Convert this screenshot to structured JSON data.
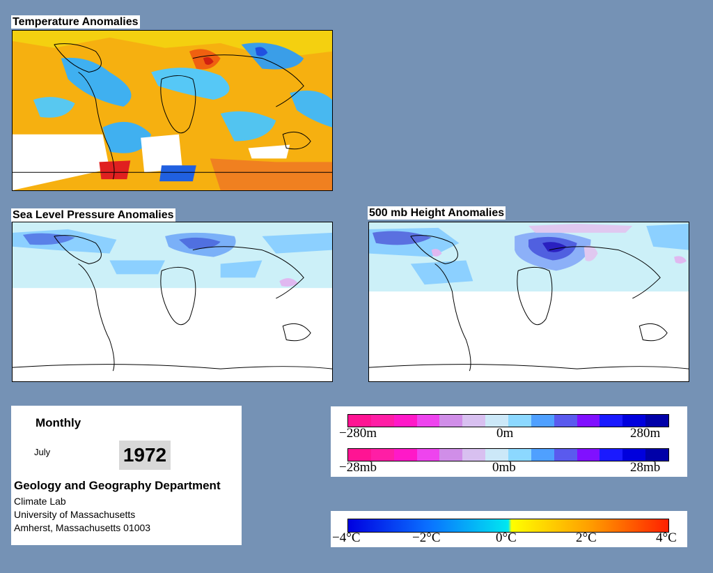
{
  "maps": {
    "temperature": {
      "title": "Temperature Anomalies"
    },
    "slp": {
      "title": "Sea Level Pressure Anomalies"
    },
    "height500": {
      "title": "500 mb Height Anomalies"
    }
  },
  "info": {
    "period": "Monthly",
    "month": "July",
    "year": "1972",
    "department": "Geology and Geography Department",
    "lab": "Climate Lab",
    "university": "University of Massachusetts",
    "address": "Amherst, Massachusetts 01003"
  },
  "legend_height": {
    "min": "−280m",
    "mid": "0m",
    "max": "280m",
    "colors": [
      "#ff1493",
      "#ff1ea5",
      "#ff19c8",
      "#ee44ee",
      "#d08ee8",
      "#d8c0f0",
      "#cce8f8",
      "#8cd8ff",
      "#4fa0ff",
      "#5a5aee",
      "#8010ff",
      "#1a1aff",
      "#0000dd",
      "#0000a8"
    ]
  },
  "legend_pressure": {
    "min": "−28mb",
    "mid": "0mb",
    "max": "28mb",
    "colors": [
      "#ff1493",
      "#ff1ea5",
      "#ff19c8",
      "#ee44ee",
      "#d08ee8",
      "#d8c0f0",
      "#cce8f8",
      "#8cd8ff",
      "#4fa0ff",
      "#5a5aee",
      "#8010ff",
      "#1a1aff",
      "#0000dd",
      "#0000a8"
    ]
  },
  "legend_temperature": {
    "labels": [
      "−4°C",
      "−2°C",
      "0°C",
      "2°C",
      "4°C"
    ]
  }
}
